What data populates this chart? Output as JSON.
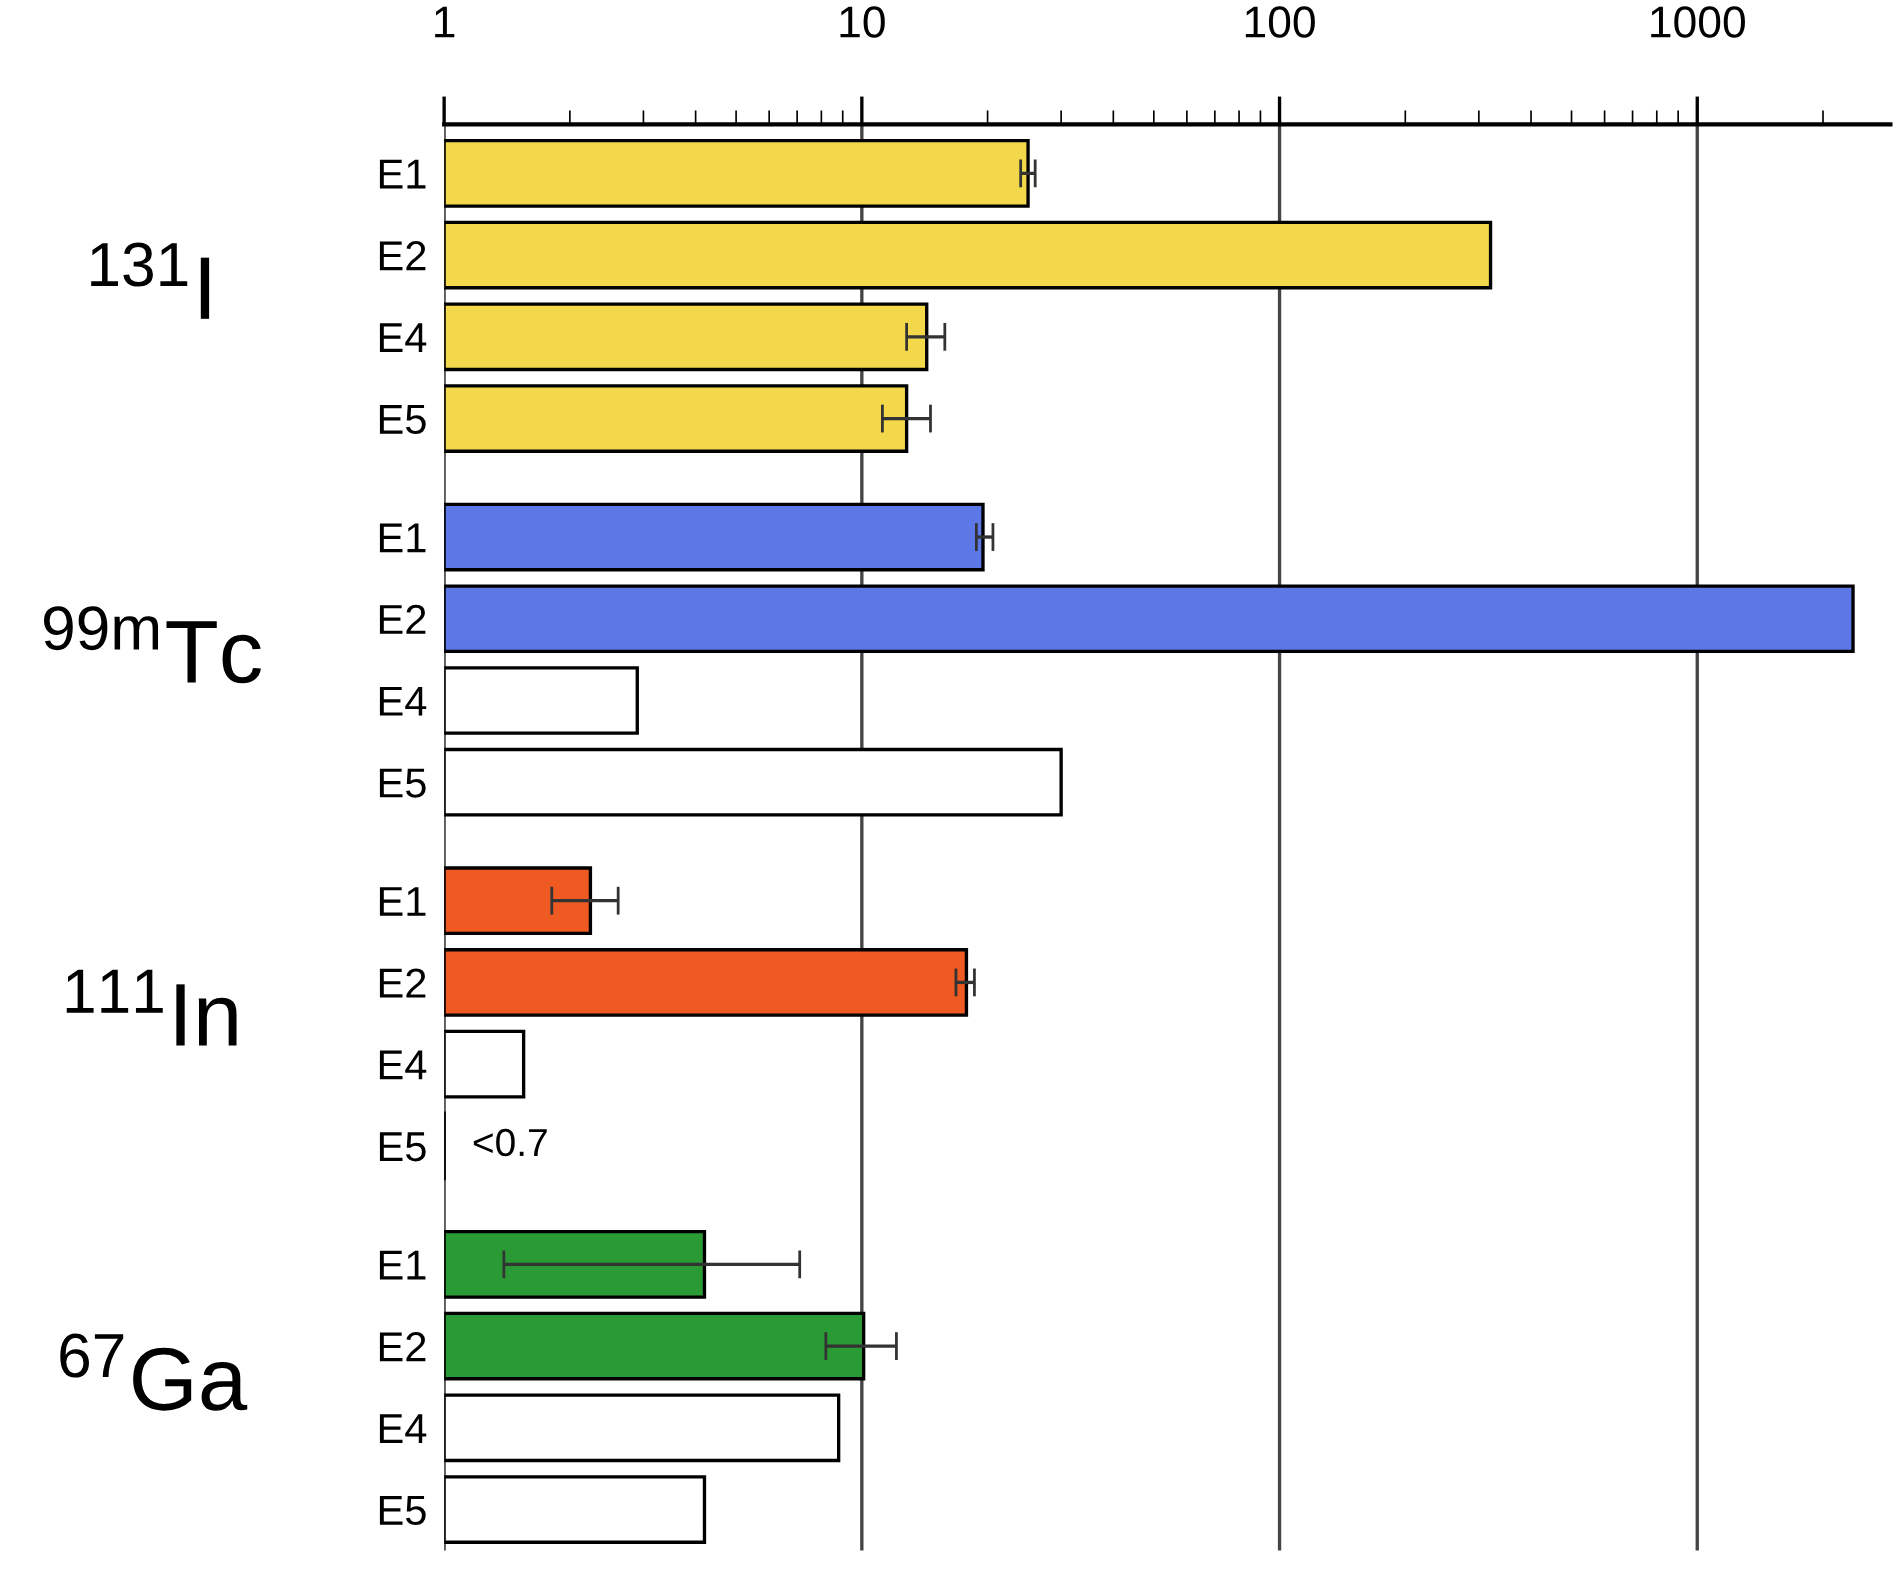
{
  "chart_data": {
    "type": "bar",
    "orientation": "horizontal",
    "log": "x",
    "categories": [
      "E1",
      "E2",
      "E4",
      "E5",
      "E1",
      "E2",
      "E4",
      "E5",
      "E1",
      "E2",
      "E4",
      "E5",
      "E1",
      "E2",
      "E4",
      "E5"
    ],
    "values": [
      25,
      320,
      14.3,
      12.8,
      19.5,
      2360,
      2.9,
      30,
      2.24,
      17.8,
      1.55,
      null,
      4.2,
      10.1,
      8.8,
      4.2
    ],
    "colors": [
      "#f2d84a",
      "#f2d84a",
      "#f2d84a",
      "#f2d84a",
      "#5b78e6",
      "#5b78e6",
      "#ffffff",
      "#ffffff",
      "#ee5a22",
      "#ee5a22",
      "#ffffff",
      "#ffffff",
      "#2a9a35",
      "#2a9a35",
      "#ffffff",
      "#ffffff"
    ],
    "errors": [
      [
        24,
        26
      ],
      null,
      [
        12.8,
        15.8
      ],
      [
        11.2,
        14.6
      ],
      [
        18.8,
        20.6
      ],
      null,
      null,
      null,
      [
        1.81,
        2.61
      ],
      [
        16.8,
        18.6
      ],
      null,
      null,
      [
        1.39,
        7.1
      ],
      [
        8.2,
        12.1
      ],
      null,
      null
    ],
    "value_labels": [
      null,
      null,
      null,
      null,
      null,
      null,
      null,
      null,
      null,
      null,
      null,
      "<0.7",
      null,
      null,
      null,
      null
    ],
    "annotations": [
      "$^{131}$I",
      "$^{99m}$Tc",
      "$^{111}$In",
      "$^{67}$Ga"
    ],
    "xlim": [
      1,
      2900
    ],
    "xticks": [
      1,
      10,
      100,
      1000
    ],
    "grid": "x"
  }
}
